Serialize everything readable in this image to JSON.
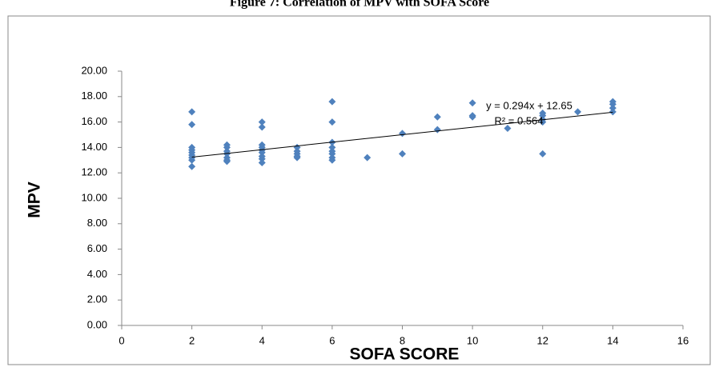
{
  "chart_data": {
    "type": "scatter",
    "title": "Figure 7: Correlation of MPV with SOFA Score",
    "x_label": "SOFA SCORE",
    "y_label": "MPV",
    "color": "#4f81bd",
    "x": [
      2,
      2,
      2,
      2,
      2,
      2,
      2,
      2,
      2,
      3,
      3,
      3,
      3,
      3,
      3,
      3,
      4,
      4,
      4,
      4,
      4,
      4,
      4,
      4,
      4,
      5,
      5,
      5,
      5,
      5,
      6,
      6,
      6,
      6,
      6,
      6,
      6,
      6,
      7,
      8,
      8,
      9,
      9,
      10,
      10,
      10,
      11,
      12,
      12,
      12,
      12,
      12,
      13,
      14,
      14,
      14,
      14
    ],
    "values": [
      16.8,
      15.8,
      14.0,
      13.8,
      13.6,
      13.4,
      13.2,
      13.0,
      12.5,
      14.2,
      14.0,
      13.7,
      13.5,
      13.2,
      13.0,
      12.9,
      16.0,
      15.6,
      14.2,
      14.0,
      13.8,
      13.6,
      13.3,
      13.1,
      12.8,
      14.0,
      13.7,
      13.5,
      13.3,
      13.2,
      17.6,
      16.0,
      14.4,
      14.0,
      13.7,
      13.5,
      13.2,
      13.0,
      13.2,
      15.1,
      13.5,
      16.4,
      15.4,
      17.5,
      16.5,
      16.4,
      15.5,
      16.7,
      16.5,
      16.2,
      16.0,
      13.5,
      16.8,
      17.6,
      17.4,
      17.1,
      16.8
    ],
    "xlim": [
      0,
      16
    ],
    "xticks": [
      0,
      2,
      4,
      6,
      8,
      10,
      12,
      14,
      16
    ],
    "ylim": [
      0,
      20
    ],
    "yticks": [
      {
        "value": 0,
        "label": "0.00"
      },
      {
        "value": 2,
        "label": "2.00"
      },
      {
        "value": 4,
        "label": "4.00"
      },
      {
        "value": 6,
        "label": "6.00"
      },
      {
        "value": 8,
        "label": "8.00"
      },
      {
        "value": 10,
        "label": "10.00"
      },
      {
        "value": 12,
        "label": "12.00"
      },
      {
        "value": 14,
        "label": "14.00"
      },
      {
        "value": 16,
        "label": "16.00"
      },
      {
        "value": 18,
        "label": "18.00"
      },
      {
        "value": 20,
        "label": "20.00"
      }
    ],
    "grid": false,
    "trendline": {
      "equation": "y = 0.294x + 12.65",
      "r_squared": "R² = 0.564",
      "slope": 0.294,
      "intercept": 12.65,
      "x_start": 2,
      "x_end": 14
    }
  }
}
